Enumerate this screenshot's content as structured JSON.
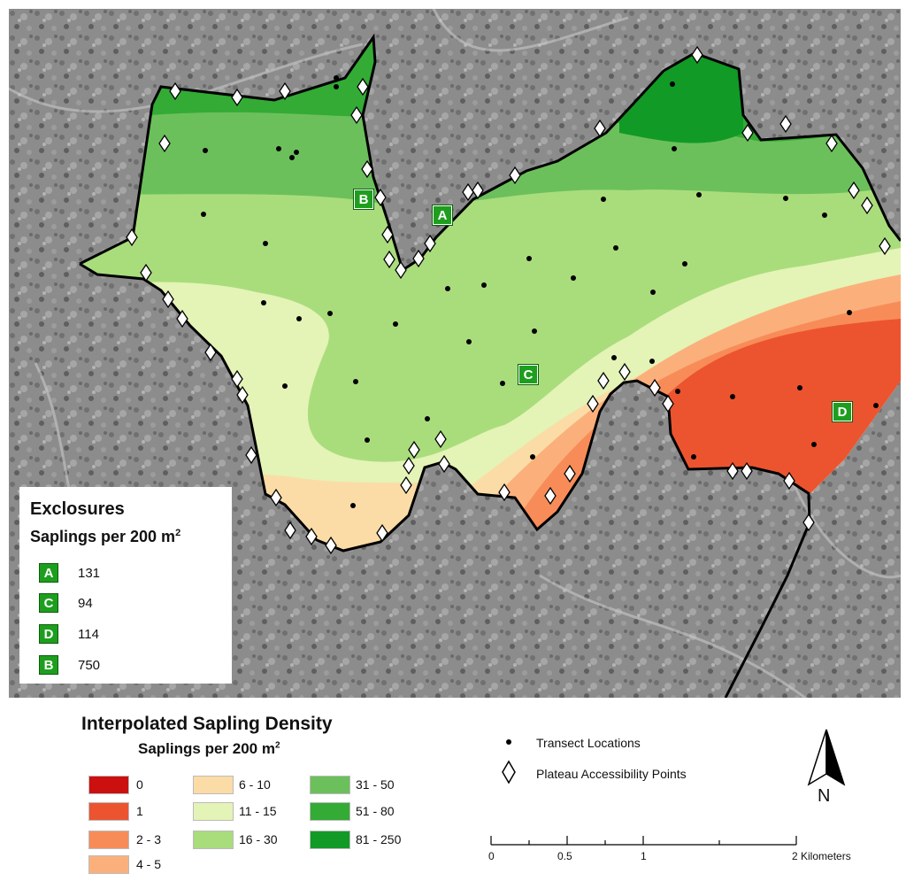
{
  "map": {
    "exclosure_markers": [
      {
        "label": "A"
      },
      {
        "label": "B"
      },
      {
        "label": "C"
      },
      {
        "label": "D"
      }
    ]
  },
  "exclosures_legend": {
    "title": "Exclosures",
    "subtitle_prefix": "Saplings per 200 m",
    "subtitle_sup": "2",
    "rows": [
      {
        "label": "A",
        "value": "131"
      },
      {
        "label": "C",
        "value": "94"
      },
      {
        "label": "D",
        "value": "114"
      },
      {
        "label": "B",
        "value": "750"
      }
    ]
  },
  "density_legend": {
    "title": "Interpolated Sapling Density",
    "subtitle_prefix": "Saplings per 200 m",
    "subtitle_sup": "2",
    "classes": [
      {
        "label": "0",
        "color": "#cc0f0f"
      },
      {
        "label": "1",
        "color": "#ec5430"
      },
      {
        "label": "2 - 3",
        "color": "#f88c58"
      },
      {
        "label": "4 - 5",
        "color": "#fbb07c"
      },
      {
        "label": "6 - 10",
        "color": "#fbdca6"
      },
      {
        "label": "11 - 15",
        "color": "#e4f3b6"
      },
      {
        "label": "16 - 30",
        "color": "#a9dd7c"
      },
      {
        "label": "31 - 50",
        "color": "#6cc05b"
      },
      {
        "label": "51 - 80",
        "color": "#33ab35"
      },
      {
        "label": "81 - 250",
        "color": "#119a26"
      }
    ]
  },
  "point_legend": {
    "transect": "Transect Locations",
    "access": "Plateau Accessibility Points"
  },
  "north_arrow": {
    "label": "N"
  },
  "scale_bar": {
    "labels": [
      "0",
      "0.5",
      "1",
      "2 Kilometers"
    ]
  }
}
